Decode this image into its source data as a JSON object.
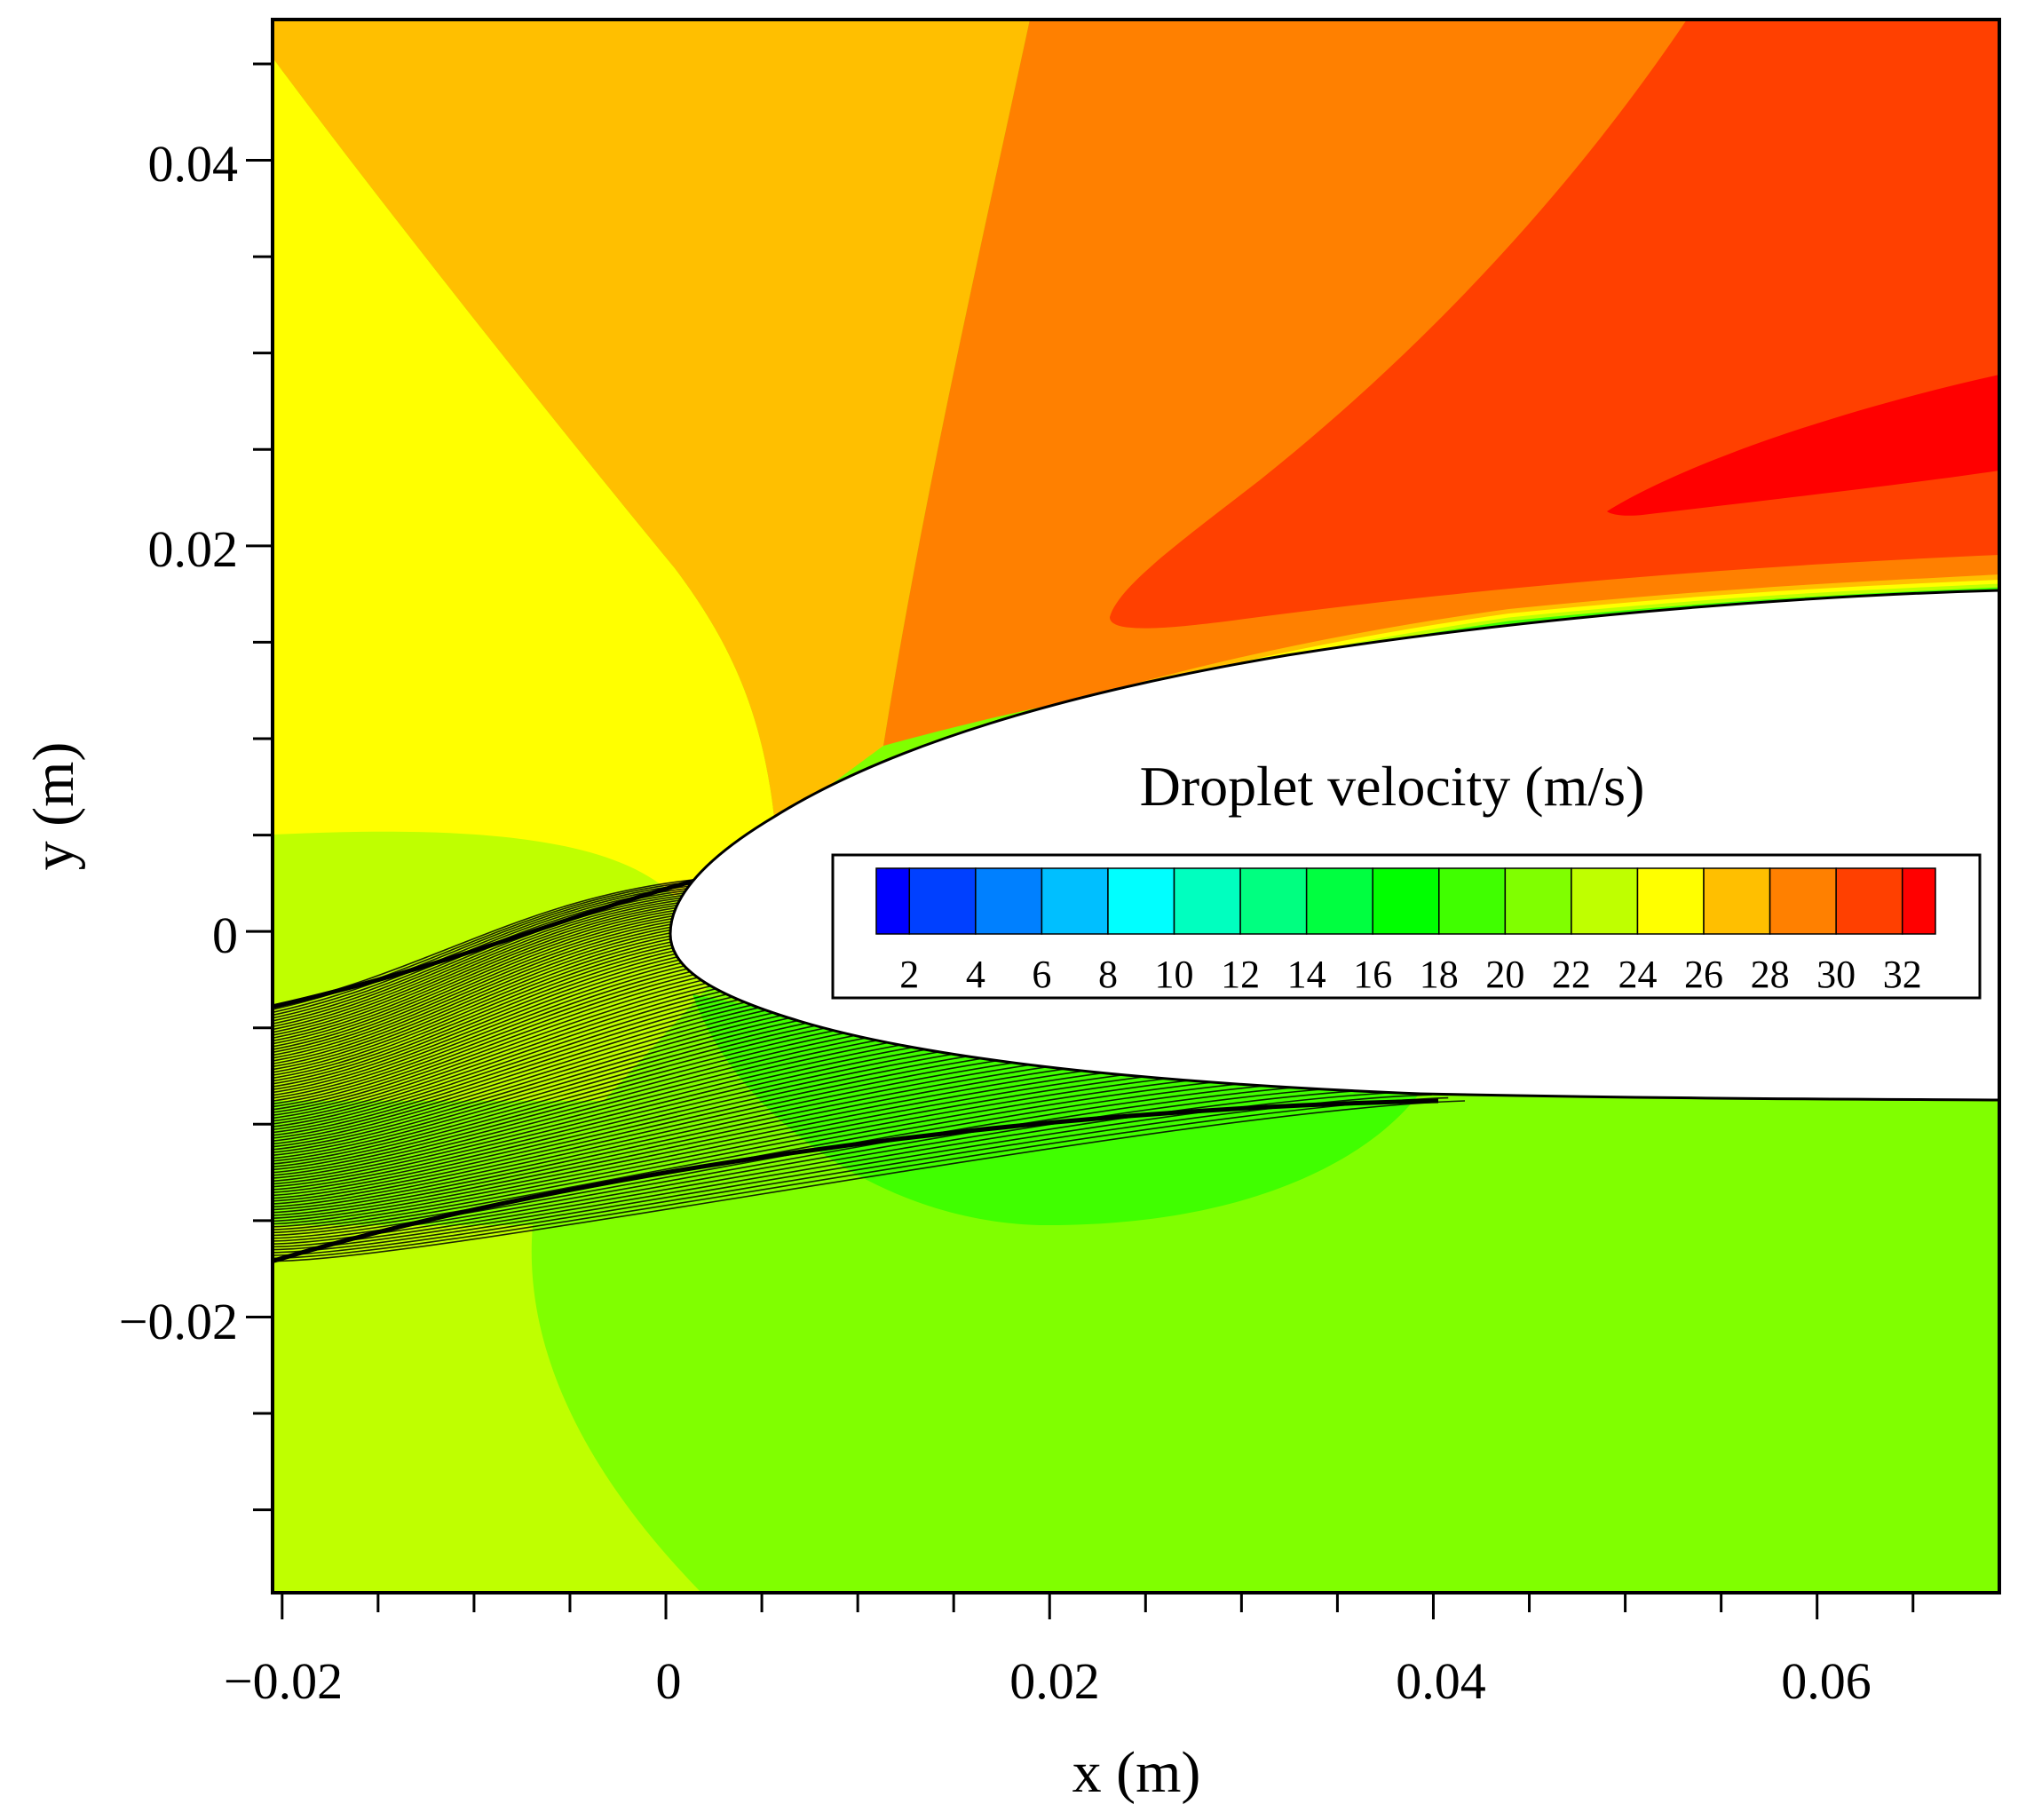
{
  "chart_data": {
    "type": "heatmap",
    "subtype": "contour plot with droplet trajectories",
    "title": "",
    "xlabel": "x (m)",
    "ylabel": "y (m)",
    "xlim": [
      -0.0205,
      0.0695
    ],
    "ylim": [
      -0.0343,
      0.0473
    ],
    "x_ticks": [
      -0.02,
      0,
      0.02,
      0.04,
      0.06
    ],
    "x_tick_labels": [
      "−0.02",
      "0",
      "0.02",
      "0.04",
      "0.06"
    ],
    "y_ticks": [
      -0.02,
      0,
      0.02,
      0.04
    ],
    "y_tick_labels": [
      "−0.02",
      "0",
      "0.02",
      "0.04"
    ],
    "x_minor_step": 0.005,
    "y_minor_step": 0.005,
    "grid": false,
    "colorbar": {
      "title": "Droplet velocity (m/s)",
      "placement": "inside-right",
      "levels": [
        1,
        3,
        5,
        7,
        9,
        11,
        13,
        15,
        17,
        19,
        21,
        23,
        25,
        27,
        29,
        31,
        33
      ],
      "tick_labels": [
        "2",
        "4",
        "6",
        "8",
        "10",
        "12",
        "14",
        "16",
        "18",
        "20",
        "22",
        "24",
        "26",
        "28",
        "30",
        "32"
      ],
      "colors": [
        "#0000ff",
        "#0040ff",
        "#0080ff",
        "#00bfff",
        "#00ffff",
        "#00ffbf",
        "#00ff80",
        "#00ff40",
        "#00ff00",
        "#40ff00",
        "#80ff00",
        "#bfff00",
        "#ffff00",
        "#ffbf00",
        "#ff8000",
        "#ff4000",
        "#ff0000"
      ]
    },
    "regions": [
      {
        "velocity_band": "20-22",
        "color": "#80ff00"
      },
      {
        "velocity_band": "22-24",
        "color": "#bfff00"
      },
      {
        "velocity_band": "18-20",
        "color": "#40ff00"
      },
      {
        "velocity_band": "24-26",
        "color": "#ffff00"
      },
      {
        "velocity_band": "26-28",
        "color": "#ffbf00"
      },
      {
        "velocity_band": "28-30",
        "color": "#ff8000"
      },
      {
        "velocity_band": "30-32",
        "color": "#ff4000"
      },
      {
        "velocity_band": "32-34",
        "color": "#ff0000"
      }
    ],
    "body": {
      "shape": "airfoil leading edge",
      "leading_edge": [
        0,
        0
      ],
      "fill": "#ffffff"
    },
    "trajectories": {
      "count": 90,
      "x_start": -0.0205,
      "y_start_range": [
        -0.0171,
        -0.0039
      ],
      "color": "#000000"
    }
  }
}
